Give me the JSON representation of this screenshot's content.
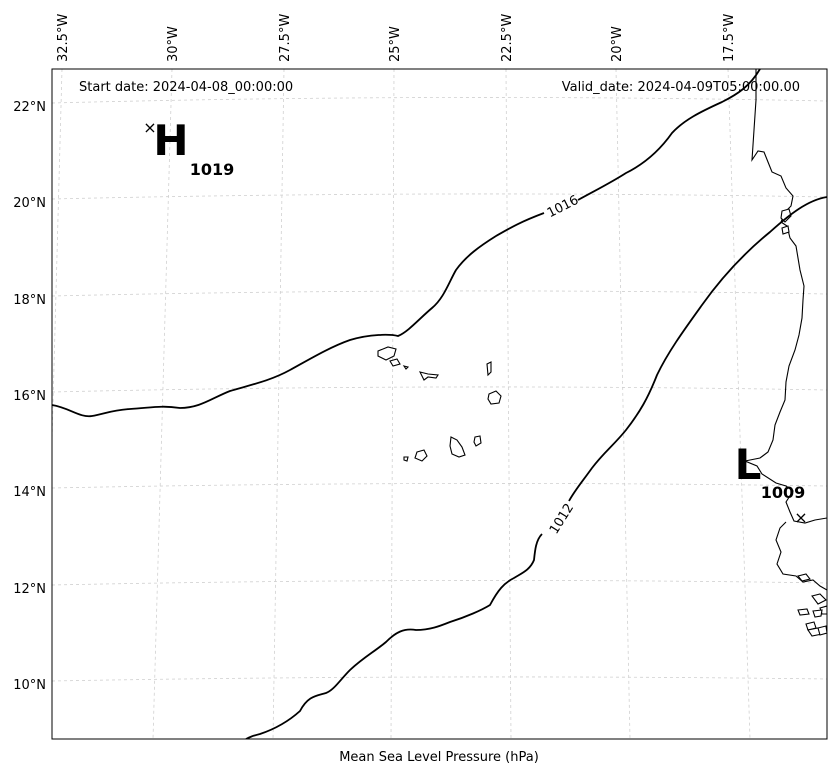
{
  "map": {
    "start_date": "Start date: 2024-04-08_00:00:00",
    "valid_date": "Valid_date: 2024-04-09T05:00:00.00",
    "caption": "Mean Sea Level Pressure (hPa)",
    "lon_ticks": [
      "32.5°W",
      "30°W",
      "27.5°W",
      "25°W",
      "22.5°W",
      "20°W",
      "17.5°W"
    ],
    "lat_ticks": [
      "22°N",
      "20°N",
      "18°N",
      "16°N",
      "14°N",
      "12°N",
      "10°N"
    ],
    "contours": [
      {
        "value": 1016,
        "label": "1016"
      },
      {
        "value": 1012,
        "label": "1012"
      }
    ],
    "pressure_centers": [
      {
        "type": "high",
        "letter": "H",
        "value": "1019",
        "marker": "×"
      },
      {
        "type": "low",
        "letter": "L",
        "value": "1009",
        "marker": "×"
      }
    ],
    "colors": {
      "contour": "#000000",
      "coastline": "#000000",
      "gridline": "#d0d0d0"
    }
  }
}
